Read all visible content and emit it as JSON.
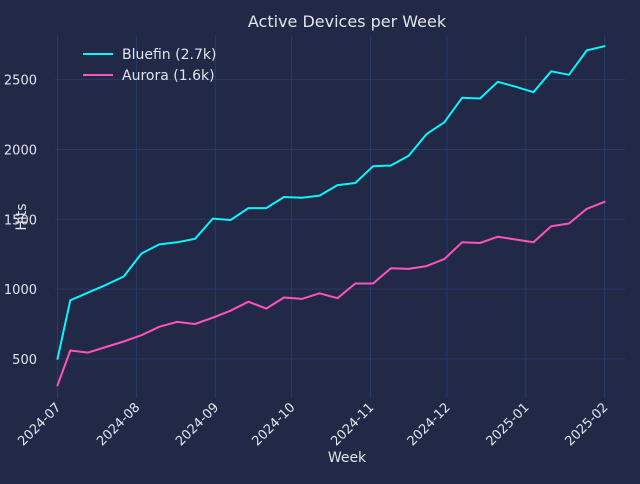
{
  "chart_data": {
    "type": "line",
    "title": "Active Devices per Week",
    "xlabel": "Week",
    "ylabel": "Hits",
    "xlim": [
      "2024-06-30",
      "2025-02-09"
    ],
    "ylim": [
      220,
      2820
    ],
    "x_ticks": [
      "2024-07",
      "2024-08",
      "2024-09",
      "2024-10",
      "2024-11",
      "2024-12",
      "2025-01",
      "2025-02"
    ],
    "x_tick_dates": [
      "2024-07-01",
      "2024-08-01",
      "2024-09-01",
      "2024-10-01",
      "2024-11-01",
      "2024-12-01",
      "2025-01-01",
      "2025-02-01"
    ],
    "y_ticks": [
      500,
      1000,
      1500,
      2000,
      2500
    ],
    "grid": true,
    "legend_position": "top-left",
    "x": [
      "2024-07-01",
      "2024-07-06",
      "2024-07-13",
      "2024-07-20",
      "2024-07-27",
      "2024-08-03",
      "2024-08-10",
      "2024-08-17",
      "2024-08-24",
      "2024-08-31",
      "2024-09-07",
      "2024-09-14",
      "2024-09-21",
      "2024-09-28",
      "2024-10-05",
      "2024-10-12",
      "2024-10-19",
      "2024-10-26",
      "2024-11-02",
      "2024-11-09",
      "2024-11-16",
      "2024-11-23",
      "2024-11-30",
      "2024-12-07",
      "2024-12-14",
      "2024-12-21",
      "2024-12-28",
      "2025-01-04",
      "2025-01-11",
      "2025-01-18",
      "2025-01-25",
      "2025-02-01"
    ],
    "series": [
      {
        "name": "Bluefin (2.7k)",
        "color": "#08f7fe",
        "values": [
          500,
          920,
          975,
          1030,
          1090,
          1255,
          1320,
          1335,
          1360,
          1505,
          1495,
          1580,
          1580,
          1660,
          1655,
          1670,
          1745,
          1760,
          1880,
          1885,
          1955,
          2110,
          2195,
          2370,
          2365,
          2485,
          2450,
          2410,
          2560,
          2535,
          2710,
          2740
        ]
      },
      {
        "name": "Aurora (1.6k)",
        "color": "#fe53bb",
        "values": [
          310,
          560,
          545,
          585,
          625,
          670,
          730,
          765,
          750,
          795,
          845,
          910,
          860,
          940,
          930,
          970,
          935,
          1040,
          1040,
          1150,
          1145,
          1165,
          1215,
          1335,
          1330,
          1375,
          1355,
          1335,
          1450,
          1470,
          1575,
          1625
        ]
      }
    ]
  },
  "colors": {
    "background": "#212946",
    "grid": "#2a3a6a",
    "text": "#e0e4ee"
  }
}
